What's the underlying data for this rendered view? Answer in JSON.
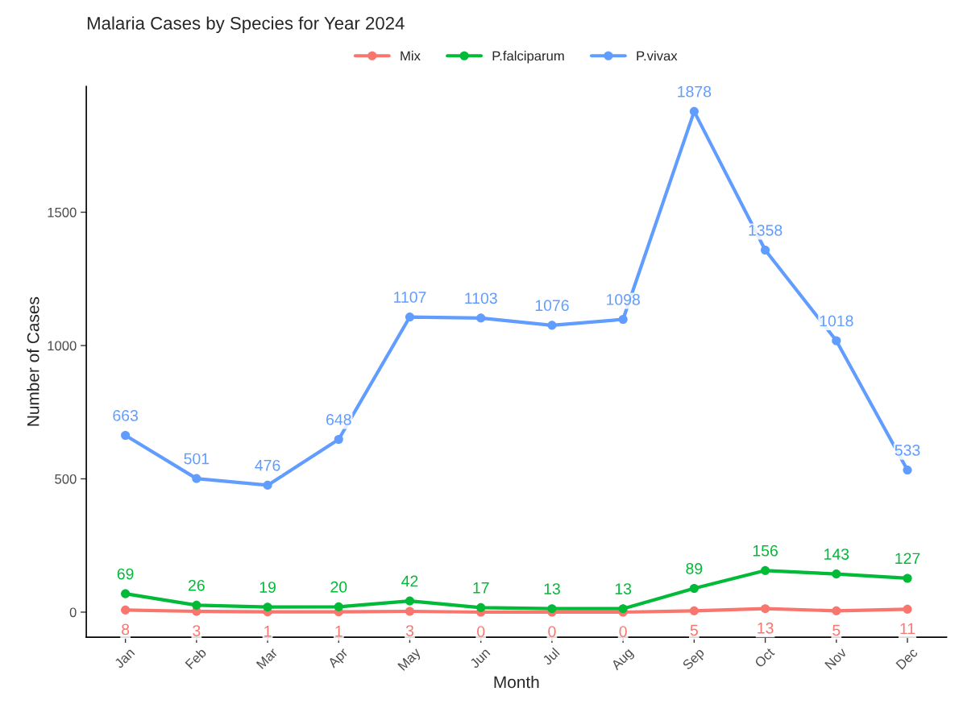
{
  "chart_data": {
    "type": "line",
    "title": "Malaria Cases by Species for Year 2024",
    "xlabel": "Month",
    "ylabel": "Number of Cases",
    "categories": [
      "Jan",
      "Feb",
      "Mar",
      "Apr",
      "May",
      "Jun",
      "Jul",
      "Aug",
      "Sep",
      "Oct",
      "Nov",
      "Dec"
    ],
    "series": [
      {
        "name": "Mix",
        "color": "#f8766d",
        "values": [
          8,
          3,
          1,
          1,
          3,
          0,
          0,
          0,
          5,
          13,
          5,
          11
        ]
      },
      {
        "name": "P.falciparum",
        "color": "#00ba38",
        "values": [
          69,
          26,
          19,
          20,
          42,
          17,
          13,
          13,
          89,
          156,
          143,
          127
        ]
      },
      {
        "name": "P.vivax",
        "color": "#619cff",
        "values": [
          663,
          501,
          476,
          648,
          1107,
          1103,
          1076,
          1098,
          1878,
          1358,
          1018,
          533
        ]
      }
    ],
    "ylim": [
      -94,
      1972
    ],
    "yticks": [
      0,
      500,
      1000,
      1500
    ],
    "grid": false,
    "legend": "top",
    "marker": "circle",
    "line_style": "solid",
    "data_labels": true
  }
}
